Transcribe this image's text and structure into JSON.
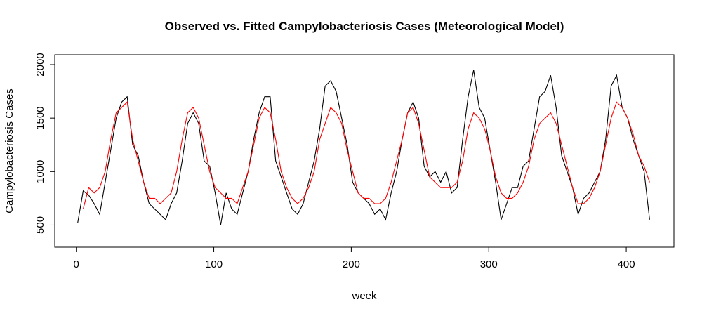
{
  "chart_data": {
    "type": "line",
    "title": "Observed vs. Fitted Campylobacteriosis Cases (Meteorological Model)",
    "x_label": "week",
    "y_label": "Campylobacteriosis Cases",
    "x": [
      1,
      5,
      9,
      13,
      17,
      21,
      25,
      29,
      33,
      37,
      41,
      45,
      49,
      53,
      57,
      61,
      65,
      69,
      73,
      77,
      81,
      85,
      89,
      93,
      97,
      101,
      105,
      109,
      113,
      117,
      121,
      125,
      129,
      133,
      137,
      141,
      145,
      149,
      153,
      157,
      161,
      165,
      169,
      173,
      177,
      181,
      185,
      189,
      193,
      197,
      201,
      205,
      209,
      213,
      217,
      221,
      225,
      229,
      233,
      237,
      241,
      245,
      249,
      253,
      257,
      261,
      265,
      269,
      273,
      277,
      281,
      285,
      289,
      293,
      297,
      301,
      305,
      309,
      313,
      317,
      321,
      325,
      329,
      333,
      337,
      341,
      345,
      349,
      353,
      357,
      361,
      365,
      369,
      373,
      377,
      381,
      385,
      389,
      393,
      397,
      401,
      405,
      409,
      413,
      417
    ],
    "series": [
      {
        "name": "Observed",
        "color": "#000000",
        "values": [
          520,
          820,
          780,
          700,
          600,
          900,
          1200,
          1500,
          1650,
          1700,
          1250,
          1150,
          900,
          700,
          650,
          600,
          550,
          700,
          800,
          1100,
          1450,
          1550,
          1450,
          1100,
          1050,
          800,
          500,
          800,
          650,
          600,
          800,
          1000,
          1300,
          1550,
          1700,
          1700,
          1100,
          950,
          800,
          650,
          600,
          700,
          900,
          1100,
          1400,
          1800,
          1850,
          1750,
          1500,
          1250,
          900,
          800,
          750,
          700,
          600,
          650,
          550,
          800,
          1000,
          1300,
          1550,
          1650,
          1500,
          1050,
          950,
          1000,
          900,
          1000,
          800,
          850,
          1300,
          1700,
          1950,
          1600,
          1500,
          1200,
          900,
          550,
          700,
          850,
          850,
          1050,
          1100,
          1400,
          1700,
          1750,
          1900,
          1600,
          1150,
          1000,
          850,
          600,
          750,
          800,
          900,
          1000,
          1300,
          1800,
          1900,
          1600,
          1500,
          1300,
          1150,
          1000,
          550
        ]
      },
      {
        "name": "Fitted",
        "color": "#ff0000",
        "values": [
          null,
          650,
          850,
          800,
          850,
          1000,
          1300,
          1550,
          1600,
          1650,
          1300,
          1100,
          900,
          750,
          750,
          700,
          750,
          800,
          1000,
          1300,
          1550,
          1600,
          1500,
          1250,
          1000,
          850,
          800,
          750,
          750,
          700,
          850,
          1000,
          1250,
          1500,
          1600,
          1550,
          1300,
          1000,
          850,
          750,
          700,
          750,
          850,
          1000,
          1300,
          1450,
          1600,
          1550,
          1450,
          1200,
          1000,
          800,
          750,
          750,
          700,
          700,
          750,
          900,
          1100,
          1300,
          1550,
          1600,
          1450,
          1200,
          950,
          900,
          850,
          850,
          850,
          900,
          1100,
          1400,
          1550,
          1500,
          1400,
          1200,
          950,
          800,
          750,
          750,
          800,
          900,
          1050,
          1300,
          1450,
          1500,
          1550,
          1450,
          1250,
          1050,
          850,
          700,
          700,
          750,
          850,
          1000,
          1250,
          1500,
          1650,
          1600,
          1500,
          1350,
          1150,
          1050,
          900
        ]
      }
    ],
    "xlim": [
      -15.68,
      434.68
    ],
    "ylim": [
      293,
      2092
    ],
    "xticks": [
      0,
      100,
      200,
      300,
      400
    ],
    "yticks": [
      500,
      1000,
      1500,
      2000
    ]
  }
}
